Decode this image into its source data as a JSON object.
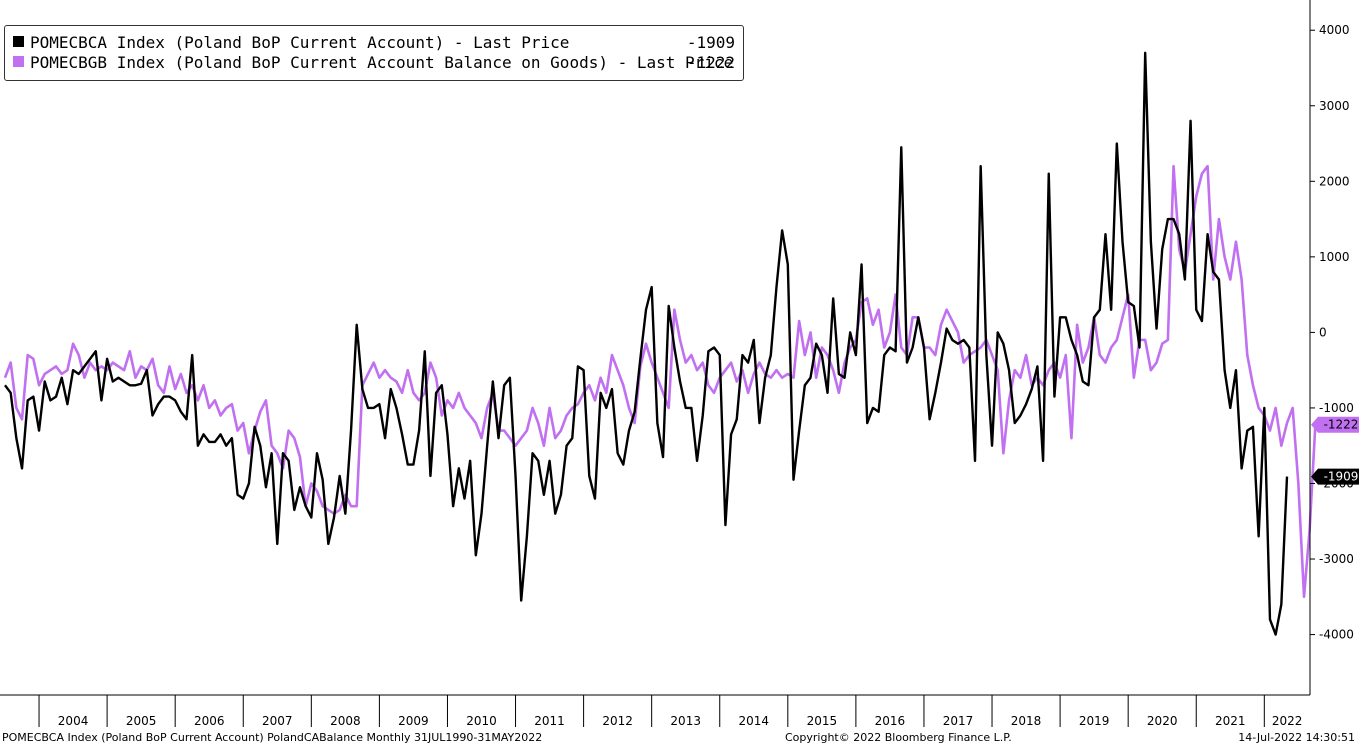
{
  "legend": {
    "items": [
      {
        "label": "POMECBCA Index (Poland BoP Current Account) - Last Price",
        "last": "-1909",
        "color": "#000000"
      },
      {
        "label": "POMECBGB Index (Poland BoP Current Account Balance on Goods) - Last Price",
        "last": "-1222",
        "color": "#c070f0"
      }
    ]
  },
  "footer": {
    "left": "POMECBCA Index (Poland BoP Current Account) PolandCABalance  Monthly 31JUL1990-31MAY2022",
    "center": "Copyright© 2022 Bloomberg Finance L.P.",
    "right": "14-Jul-2022 14:30:51"
  },
  "chart_data": {
    "type": "line",
    "x_start": "2003-07",
    "x_end": "2022-05",
    "x_unit": "monthly",
    "ylim": [
      -4800,
      4400
    ],
    "yticks": [
      -4000,
      -3000,
      -2000,
      -1000,
      0,
      1000,
      2000,
      3000,
      4000
    ],
    "ytick_labels": [
      "-4000",
      "-3000",
      "-2000",
      "-1000",
      "0",
      "1000",
      "2000",
      "3000",
      "4000"
    ],
    "xtick_labels": [
      "2004",
      "2005",
      "2006",
      "2007",
      "2008",
      "2009",
      "2010",
      "2011",
      "2012",
      "2013",
      "2014",
      "2015",
      "2016",
      "2017",
      "2018",
      "2019",
      "2020",
      "2021",
      "2022"
    ],
    "axis_side": "right",
    "grid": false,
    "legend_position": "top-left",
    "series": [
      {
        "name": "POMECBCA Index (Poland BoP Current Account) - Last Price",
        "color": "#000000",
        "last_label": "-1909",
        "values": [
          -700,
          -800,
          -1400,
          -1800,
          -900,
          -850,
          -1300,
          -650,
          -900,
          -850,
          -600,
          -950,
          -500,
          -550,
          -450,
          -350,
          -250,
          -900,
          -350,
          -650,
          -600,
          -650,
          -700,
          -700,
          -680,
          -500,
          -1100,
          -950,
          -850,
          -850,
          -900,
          -1050,
          -1150,
          -300,
          -1500,
          -1350,
          -1450,
          -1450,
          -1350,
          -1500,
          -1400,
          -2150,
          -2200,
          -2000,
          -1250,
          -1500,
          -2050,
          -1600,
          -2800,
          -1600,
          -1700,
          -2350,
          -2050,
          -2300,
          -2450,
          -1600,
          -1950,
          -2800,
          -2450,
          -1900,
          -2400,
          -1300,
          100,
          -750,
          -1000,
          -1000,
          -950,
          -1400,
          -750,
          -1000,
          -1350,
          -1750,
          -1750,
          -1300,
          -250,
          -1900,
          -800,
          -700,
          -1350,
          -2300,
          -1800,
          -2200,
          -1700,
          -2950,
          -2400,
          -1500,
          -650,
          -1400,
          -700,
          -600,
          -1900,
          -3550,
          -2700,
          -1600,
          -1700,
          -2150,
          -1700,
          -2400,
          -2150,
          -1500,
          -1400,
          -450,
          -500,
          -1900,
          -2200,
          -800,
          -1000,
          -750,
          -1600,
          -1750,
          -1300,
          -1050,
          -350,
          300,
          600,
          -1200,
          -1650,
          350,
          -200,
          -650,
          -1000,
          -1000,
          -1700,
          -1100,
          -250,
          -200,
          -300,
          -2550,
          -1350,
          -1150,
          -300,
          -400,
          -100,
          -1200,
          -600,
          -300,
          600,
          1350,
          900,
          -1950,
          -1300,
          -700,
          -600,
          -150,
          -300,
          -800,
          450,
          -550,
          -600,
          0,
          -300,
          900,
          -1200,
          -1000,
          -1050,
          -300,
          -200,
          -250,
          2450,
          -400,
          -200,
          200,
          -200,
          -1150,
          -800,
          -400,
          50,
          -100,
          -150,
          -100,
          -200,
          -1700,
          2200,
          -300,
          -1500,
          0,
          -150,
          -500,
          -1200,
          -1100,
          -950,
          -750,
          -450,
          -1700,
          2100,
          -850,
          200,
          200,
          -100,
          -300,
          -650,
          -700,
          200,
          300,
          1300,
          300,
          2500,
          1200,
          400,
          350,
          -200,
          3700,
          1200,
          50,
          1100,
          1500,
          1500,
          1300,
          700,
          2800,
          300,
          150,
          1300,
          800,
          700,
          -500,
          -1000,
          -500,
          -1800,
          -1300,
          -1250,
          -2700,
          -1000,
          -3800,
          -4000,
          -3600,
          -1909
        ]
      },
      {
        "name": "POMECBGB Index (Poland BoP Current Account Balance on Goods) - Last Price",
        "color": "#c070f0",
        "last_label": "-1222",
        "values": [
          -600,
          -400,
          -1000,
          -1150,
          -300,
          -350,
          -700,
          -550,
          -500,
          -450,
          -550,
          -500,
          -150,
          -300,
          -600,
          -400,
          -500,
          -450,
          -500,
          -400,
          -450,
          -500,
          -250,
          -600,
          -450,
          -500,
          -350,
          -700,
          -800,
          -450,
          -750,
          -550,
          -800,
          -700,
          -900,
          -700,
          -1000,
          -900,
          -1100,
          -1000,
          -950,
          -1300,
          -1200,
          -1600,
          -1300,
          -1050,
          -900,
          -1500,
          -1600,
          -1800,
          -1300,
          -1400,
          -1650,
          -2300,
          -2000,
          -2100,
          -2300,
          -2350,
          -2400,
          -2350,
          -2150,
          -2300,
          -2300,
          -700,
          -550,
          -400,
          -600,
          -500,
          -600,
          -650,
          -800,
          -500,
          -800,
          -900,
          -800,
          -400,
          -600,
          -1100,
          -900,
          -1000,
          -800,
          -1000,
          -1100,
          -1200,
          -1400,
          -1000,
          -800,
          -1300,
          -1300,
          -1400,
          -1500,
          -1400,
          -1300,
          -1000,
          -1200,
          -1500,
          -1000,
          -1400,
          -1300,
          -1100,
          -1000,
          -950,
          -800,
          -700,
          -900,
          -600,
          -800,
          -300,
          -500,
          -700,
          -1000,
          -1200,
          -450,
          -150,
          -400,
          -600,
          -800,
          -1000,
          300,
          -100,
          -400,
          -300,
          -500,
          -400,
          -700,
          -800,
          -600,
          -500,
          -400,
          -650,
          -500,
          -800,
          -550,
          -400,
          -550,
          -600,
          -500,
          -600,
          -550,
          -600,
          150,
          -300,
          0,
          -600,
          -200,
          -300,
          -500,
          -800,
          -400,
          -200,
          -100,
          400,
          450,
          100,
          300,
          -200,
          0,
          500,
          -200,
          -300,
          200,
          200,
          -200,
          -200,
          -300,
          100,
          300,
          150,
          0,
          -400,
          -300,
          -250,
          -200,
          -100,
          -300,
          -500,
          -1600,
          -900,
          -500,
          -600,
          -300,
          -700,
          -600,
          -700,
          -500,
          -400,
          -600,
          -300,
          -1400,
          100,
          -400,
          -200,
          200,
          -300,
          -400,
          -200,
          -100,
          200,
          500,
          -600,
          -100,
          -100,
          -500,
          -400,
          -150,
          -100,
          2200,
          1100,
          800,
          1300,
          1800,
          2100,
          2200,
          700,
          1500,
          1000,
          700,
          1200,
          700,
          -300,
          -700,
          -1000,
          -1100,
          -1300,
          -1000,
          -1500,
          -1200,
          -1000,
          -2000,
          -3500,
          -2600,
          -1222
        ]
      }
    ]
  }
}
